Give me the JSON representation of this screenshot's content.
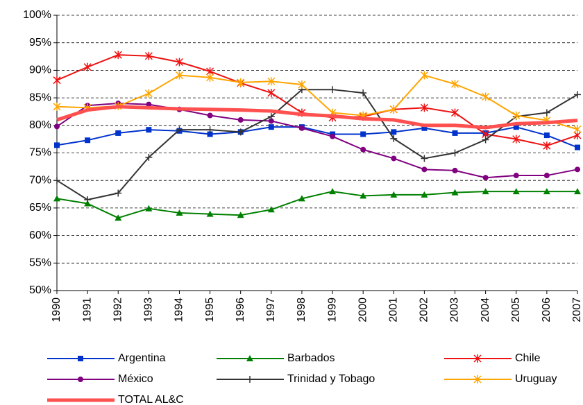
{
  "chart_data": {
    "type": "line",
    "categories": [
      "1990",
      "1991",
      "1992",
      "1993",
      "1994",
      "1995",
      "1996",
      "1997",
      "1998",
      "1999",
      "2000",
      "2001",
      "2002",
      "2003",
      "2004",
      "2005",
      "2006",
      "2007"
    ],
    "series": [
      {
        "name": "Argentina",
        "color": "#0033cc",
        "marker": "square",
        "values": [
          76.4,
          77.3,
          78.6,
          79.2,
          79.0,
          78.4,
          78.8,
          79.7,
          79.7,
          78.4,
          78.4,
          78.8,
          79.5,
          78.6,
          78.6,
          79.7,
          78.2,
          76.0
        ]
      },
      {
        "name": "Barbados",
        "color": "#008000",
        "marker": "triangle",
        "values": [
          66.7,
          65.8,
          63.2,
          64.9,
          64.1,
          63.9,
          63.7,
          64.7,
          66.7,
          68.0,
          67.2,
          67.4,
          67.4,
          67.8,
          68.0,
          68.0,
          68.0,
          68.0
        ]
      },
      {
        "name": "Chile",
        "color": "#ee1111",
        "marker": "asterisk",
        "values": [
          88.2,
          90.6,
          92.8,
          92.6,
          91.5,
          89.8,
          87.7,
          85.9,
          82.3,
          81.4,
          81.6,
          82.9,
          83.2,
          82.3,
          78.4,
          77.5,
          76.3,
          78.2
        ]
      },
      {
        "name": "México",
        "color": "#800080",
        "marker": "circle",
        "values": [
          79.8,
          83.6,
          84.0,
          83.8,
          82.9,
          81.8,
          81.0,
          80.8,
          79.5,
          78.0,
          75.6,
          74.0,
          72.0,
          71.8,
          70.5,
          70.9,
          70.9,
          72.0
        ]
      },
      {
        "name": "Trinidad y Tobago",
        "color": "#333333",
        "marker": "plus",
        "values": [
          70.0,
          66.5,
          67.7,
          74.2,
          79.2,
          79.2,
          78.8,
          81.6,
          86.5,
          86.5,
          85.9,
          77.6,
          74.0,
          75.0,
          77.4,
          81.6,
          82.3,
          85.6
        ]
      },
      {
        "name": "Uruguay",
        "color": "#ffa500",
        "marker": "asterisk",
        "values": [
          83.4,
          83.2,
          83.5,
          85.8,
          89.1,
          88.7,
          87.8,
          88.0,
          87.4,
          82.3,
          81.8,
          82.9,
          89.1,
          87.5,
          85.2,
          81.8,
          80.9,
          79.3
        ]
      },
      {
        "name": "TOTAL AL&C",
        "color": "#ff5050",
        "marker": "none",
        "width": 5,
        "values": [
          81.0,
          82.8,
          83.4,
          83.2,
          83.0,
          82.9,
          82.8,
          82.6,
          82.0,
          81.7,
          81.2,
          81.0,
          80.0,
          80.0,
          79.6,
          80.3,
          80.5,
          80.9
        ]
      }
    ],
    "ylim": [
      50,
      100
    ],
    "yticks": [
      {
        "value": 50,
        "label": "50%"
      },
      {
        "value": 55,
        "label": "55%"
      },
      {
        "value": 60,
        "label": "60%"
      },
      {
        "value": 65,
        "label": "65%"
      },
      {
        "value": 70,
        "label": "70%"
      },
      {
        "value": 75,
        "label": "75%"
      },
      {
        "value": 80,
        "label": "80%"
      },
      {
        "value": 85,
        "label": "85%"
      },
      {
        "value": 90,
        "label": "90%"
      },
      {
        "value": 95,
        "label": "95%"
      },
      {
        "value": 100,
        "label": "100%"
      }
    ],
    "grid": true
  }
}
